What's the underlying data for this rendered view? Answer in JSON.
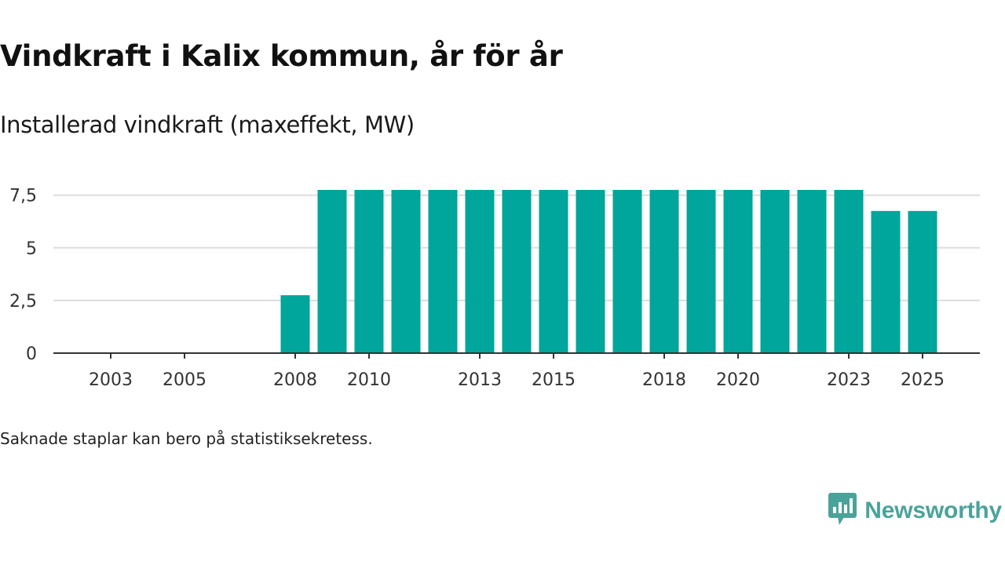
{
  "header": {
    "title": "Vindkraft i Kalix kommun, år för år",
    "subtitle": "Installerad vindkraft (maxeffekt, MW)"
  },
  "footnote": "Saknade staplar kan bero på statistiksekretess.",
  "brand": {
    "name": "Newsworthy",
    "icon": "newsworthy-logo-icon",
    "color": "#4aa39b"
  },
  "colors": {
    "bar": "#00a59b",
    "grid": "#dddddd",
    "axis": "#333333"
  },
  "chart_data": {
    "type": "bar",
    "title": "Vindkraft i Kalix kommun, år för år",
    "subtitle": "Installerad vindkraft (maxeffekt, MW)",
    "xlabel": "",
    "ylabel": "",
    "categories": [
      2003,
      2004,
      2005,
      2006,
      2007,
      2008,
      2009,
      2010,
      2011,
      2012,
      2013,
      2014,
      2015,
      2016,
      2017,
      2018,
      2019,
      2020,
      2021,
      2022,
      2023,
      2024,
      2025
    ],
    "values": [
      null,
      null,
      null,
      null,
      null,
      2.75,
      7.75,
      7.75,
      7.75,
      7.75,
      7.75,
      7.75,
      7.75,
      7.75,
      7.75,
      7.75,
      7.75,
      7.75,
      7.75,
      7.75,
      7.75,
      6.75,
      6.75
    ],
    "x_tick_labels": [
      "2003",
      "2005",
      "2008",
      "2010",
      "2013",
      "2015",
      "2018",
      "2020",
      "2023",
      "2025"
    ],
    "y_ticks": [
      0,
      2.5,
      5,
      7.5
    ],
    "y_tick_labels": [
      "0",
      "2,5",
      "5",
      "7,5"
    ],
    "ylim": [
      0,
      7.75
    ],
    "grid": true,
    "legend": "none"
  }
}
